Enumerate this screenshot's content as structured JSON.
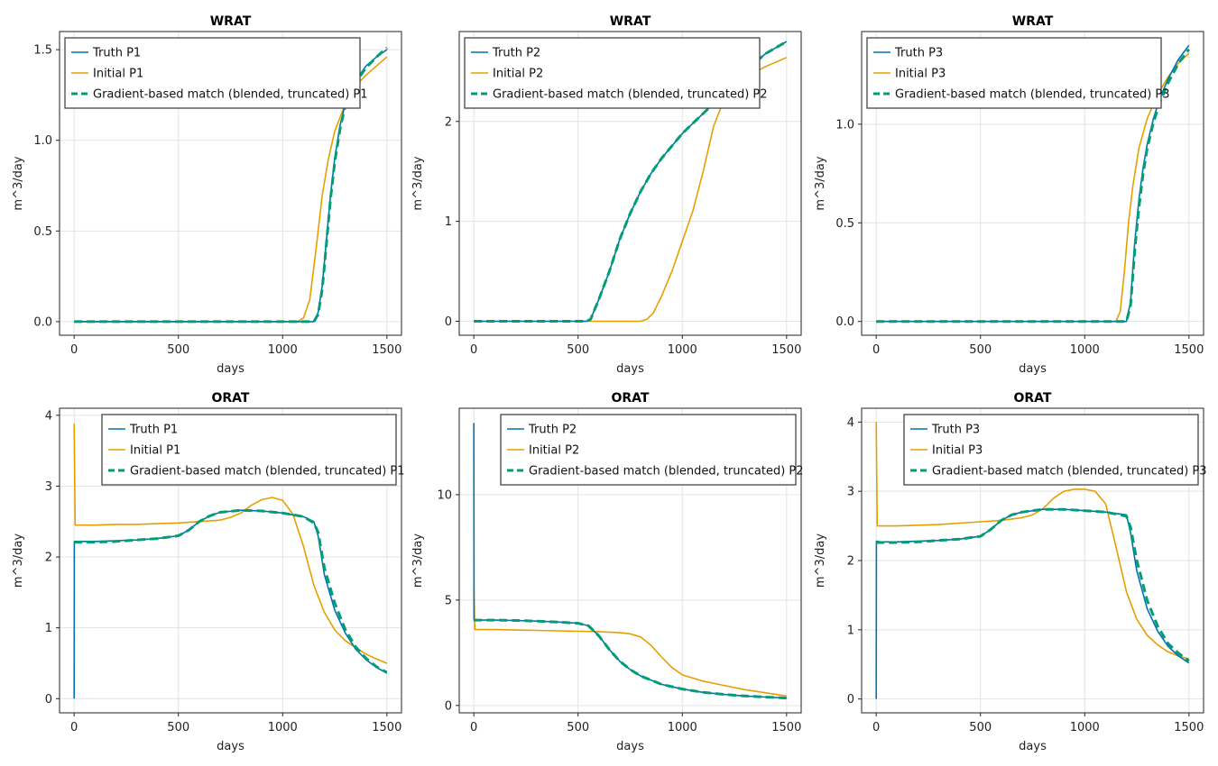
{
  "figure": {
    "colors": {
      "truth": "#0072b2",
      "initial": "#e69f00",
      "match": "#009e73"
    },
    "legend_labels": {
      "truth": "Truth",
      "initial": "Initial",
      "match": "Gradient-based match (blended, truncated)"
    }
  },
  "chart_data": [
    {
      "type": "line",
      "title": "WRAT",
      "xlabel": "days",
      "ylabel": "m^3/day",
      "xlim": [
        -70,
        1570
      ],
      "ylim": [
        -0.075,
        1.6
      ],
      "xticks": [
        0,
        500,
        1000,
        1500
      ],
      "yticks": [
        0.0,
        0.5,
        1.0,
        1.5
      ],
      "ytick_labels": [
        "0.0",
        "0.5",
        "1.0",
        "1.5"
      ],
      "grid": true,
      "legend_position": "top-left",
      "series": [
        {
          "name": "Truth P1",
          "role": "truth",
          "x": [
            0,
            200,
            400,
            600,
            800,
            1000,
            1150,
            1170,
            1190,
            1210,
            1230,
            1250,
            1275,
            1300,
            1350,
            1400,
            1450,
            1500
          ],
          "y": [
            0,
            0,
            0,
            0,
            0,
            0,
            0,
            0.05,
            0.2,
            0.45,
            0.7,
            0.9,
            1.08,
            1.2,
            1.33,
            1.41,
            1.46,
            1.5
          ]
        },
        {
          "name": "Initial P1",
          "role": "initial",
          "x": [
            0,
            200,
            400,
            600,
            800,
            1000,
            1070,
            1100,
            1130,
            1160,
            1190,
            1220,
            1250,
            1300,
            1350,
            1400,
            1450,
            1500
          ],
          "y": [
            0,
            0,
            0,
            0,
            0,
            0,
            0,
            0.02,
            0.12,
            0.4,
            0.7,
            0.9,
            1.05,
            1.2,
            1.3,
            1.36,
            1.41,
            1.46
          ]
        },
        {
          "name": "Gradient-based match (blended, truncated) P1",
          "role": "match",
          "x": [
            0,
            200,
            400,
            600,
            800,
            1000,
            1150,
            1170,
            1190,
            1210,
            1230,
            1250,
            1275,
            1300,
            1350,
            1400,
            1450,
            1500
          ],
          "y": [
            0,
            0,
            0,
            0,
            0,
            0,
            0,
            0.04,
            0.18,
            0.43,
            0.68,
            0.88,
            1.06,
            1.19,
            1.32,
            1.4,
            1.46,
            1.51
          ]
        }
      ]
    },
    {
      "type": "line",
      "title": "WRAT",
      "xlabel": "days",
      "ylabel": "m^3/day",
      "xlim": [
        -70,
        1570
      ],
      "ylim": [
        -0.14,
        2.9
      ],
      "xticks": [
        0,
        500,
        1000,
        1500
      ],
      "yticks": [
        0,
        1,
        2
      ],
      "ytick_labels": [
        "0",
        "1",
        "2"
      ],
      "grid": true,
      "legend_position": "top-left",
      "series": [
        {
          "name": "Truth P2",
          "role": "truth",
          "x": [
            0,
            200,
            400,
            540,
            560,
            600,
            650,
            700,
            750,
            800,
            850,
            900,
            1000,
            1100,
            1200,
            1300,
            1400,
            1500
          ],
          "y": [
            0,
            0,
            0,
            0,
            0.02,
            0.22,
            0.5,
            0.82,
            1.08,
            1.3,
            1.48,
            1.63,
            1.88,
            2.08,
            2.28,
            2.5,
            2.68,
            2.8
          ]
        },
        {
          "name": "Initial P2",
          "role": "initial",
          "x": [
            0,
            200,
            400,
            600,
            800,
            830,
            860,
            900,
            950,
            1000,
            1050,
            1100,
            1150,
            1200,
            1250,
            1300,
            1400,
            1500
          ],
          "y": [
            0,
            0,
            0,
            0,
            0,
            0.02,
            0.08,
            0.25,
            0.5,
            0.8,
            1.1,
            1.5,
            1.95,
            2.22,
            2.35,
            2.44,
            2.55,
            2.64
          ]
        },
        {
          "name": "Gradient-based match (blended, truncated) P2",
          "role": "match",
          "x": [
            0,
            200,
            400,
            540,
            560,
            600,
            650,
            700,
            750,
            800,
            850,
            900,
            1000,
            1100,
            1200,
            1300,
            1400,
            1500
          ],
          "y": [
            0,
            0,
            0,
            0,
            0.02,
            0.22,
            0.5,
            0.82,
            1.08,
            1.3,
            1.48,
            1.63,
            1.88,
            2.08,
            2.28,
            2.5,
            2.68,
            2.8
          ]
        }
      ]
    },
    {
      "type": "line",
      "title": "WRAT",
      "xlabel": "days",
      "ylabel": "m^3/day",
      "xlim": [
        -70,
        1570
      ],
      "ylim": [
        -0.07,
        1.47
      ],
      "xticks": [
        0,
        500,
        1000,
        1500
      ],
      "yticks": [
        0.0,
        0.5,
        1.0
      ],
      "ytick_labels": [
        "0.0",
        "0.5",
        "1.0"
      ],
      "grid": true,
      "legend_position": "top-left",
      "series": [
        {
          "name": "Truth P3",
          "role": "truth",
          "x": [
            0,
            200,
            400,
            600,
            800,
            1000,
            1200,
            1220,
            1240,
            1260,
            1280,
            1300,
            1330,
            1360,
            1400,
            1450,
            1500
          ],
          "y": [
            0,
            0,
            0,
            0,
            0,
            0,
            0,
            0.1,
            0.4,
            0.62,
            0.78,
            0.9,
            1.03,
            1.13,
            1.23,
            1.33,
            1.4
          ]
        },
        {
          "name": "Initial P3",
          "role": "initial",
          "x": [
            0,
            200,
            400,
            600,
            800,
            1000,
            1150,
            1170,
            1190,
            1210,
            1230,
            1260,
            1300,
            1350,
            1400,
            1450,
            1500
          ],
          "y": [
            0,
            0,
            0,
            0,
            0,
            0,
            0,
            0.05,
            0.25,
            0.5,
            0.68,
            0.88,
            1.03,
            1.15,
            1.24,
            1.31,
            1.36
          ]
        },
        {
          "name": "Gradient-based match (blended, truncated) P3",
          "role": "match",
          "x": [
            0,
            200,
            400,
            600,
            800,
            1000,
            1200,
            1220,
            1240,
            1260,
            1280,
            1300,
            1330,
            1360,
            1400,
            1450,
            1500
          ],
          "y": [
            0,
            0,
            0,
            0,
            0,
            0,
            0,
            0.08,
            0.36,
            0.58,
            0.75,
            0.88,
            1.01,
            1.11,
            1.21,
            1.31,
            1.38
          ]
        }
      ]
    },
    {
      "type": "line",
      "title": "ORAT",
      "xlabel": "days",
      "ylabel": "m^3/day",
      "xlim": [
        -70,
        1570
      ],
      "ylim": [
        -0.2,
        4.1
      ],
      "xticks": [
        0,
        500,
        1000,
        1500
      ],
      "yticks": [
        0,
        1,
        2,
        3,
        4
      ],
      "ytick_labels": [
        "0",
        "1",
        "2",
        "3",
        "4"
      ],
      "grid": true,
      "legend_position": "top-right",
      "series": [
        {
          "name": "Truth P1",
          "role": "truth",
          "x": [
            0,
            1,
            20,
            100,
            200,
            300,
            400,
            500,
            550,
            600,
            650,
            700,
            800,
            900,
            1000,
            1100,
            1150,
            1170,
            1200,
            1250,
            1300,
            1350,
            1400,
            1450,
            1500
          ],
          "y": [
            0,
            2.22,
            2.22,
            2.22,
            2.23,
            2.24,
            2.26,
            2.3,
            2.38,
            2.5,
            2.58,
            2.63,
            2.66,
            2.65,
            2.62,
            2.57,
            2.5,
            2.3,
            1.75,
            1.25,
            0.93,
            0.7,
            0.55,
            0.44,
            0.36
          ]
        },
        {
          "name": "Initial P1",
          "role": "initial",
          "x": [
            0,
            5,
            20,
            100,
            200,
            300,
            400,
            500,
            600,
            700,
            750,
            800,
            850,
            900,
            950,
            1000,
            1050,
            1100,
            1150,
            1200,
            1250,
            1300,
            1350,
            1400,
            1450,
            1500
          ],
          "y": [
            3.88,
            2.45,
            2.45,
            2.45,
            2.46,
            2.46,
            2.47,
            2.48,
            2.5,
            2.52,
            2.56,
            2.62,
            2.73,
            2.81,
            2.84,
            2.8,
            2.6,
            2.15,
            1.6,
            1.22,
            0.97,
            0.82,
            0.72,
            0.63,
            0.56,
            0.5
          ]
        },
        {
          "name": "Gradient-based match (blended, truncated) P1",
          "role": "match",
          "x": [
            0,
            100,
            200,
            300,
            400,
            500,
            550,
            600,
            650,
            700,
            800,
            900,
            1000,
            1100,
            1150,
            1170,
            1200,
            1250,
            1300,
            1350,
            1400,
            1450,
            1500
          ],
          "y": [
            2.21,
            2.21,
            2.22,
            2.24,
            2.26,
            2.3,
            2.38,
            2.5,
            2.58,
            2.63,
            2.66,
            2.65,
            2.62,
            2.57,
            2.48,
            2.35,
            1.85,
            1.35,
            0.98,
            0.73,
            0.57,
            0.45,
            0.37
          ]
        }
      ]
    },
    {
      "type": "line",
      "title": "ORAT",
      "xlabel": "days",
      "ylabel": "m^3/day",
      "xlim": [
        -70,
        1570
      ],
      "ylim": [
        -0.35,
        14.1
      ],
      "xticks": [
        0,
        500,
        1000,
        1500
      ],
      "yticks": [
        0,
        5,
        10
      ],
      "ytick_labels": [
        "0",
        "5",
        "10"
      ],
      "grid": true,
      "legend_position": "top-right",
      "series": [
        {
          "name": "Truth P2",
          "role": "truth",
          "x": [
            0,
            1,
            3,
            5,
            20,
            100,
            200,
            300,
            400,
            500,
            550,
            600,
            650,
            700,
            750,
            800,
            900,
            1000,
            1100,
            1200,
            1300,
            1400,
            1500
          ],
          "y": [
            13.4,
            4.05,
            4.05,
            4.05,
            4.05,
            4.05,
            4.03,
            4.0,
            3.96,
            3.9,
            3.78,
            3.3,
            2.65,
            2.1,
            1.7,
            1.4,
            1.0,
            0.78,
            0.62,
            0.52,
            0.45,
            0.4,
            0.35
          ]
        },
        {
          "name": "Initial P2",
          "role": "initial",
          "x": [
            0,
            5,
            20,
            100,
            200,
            300,
            400,
            500,
            600,
            700,
            750,
            800,
            850,
            900,
            950,
            1000,
            1100,
            1200,
            1300,
            1400,
            1500
          ],
          "y": [
            5.6,
            3.6,
            3.6,
            3.6,
            3.58,
            3.56,
            3.54,
            3.52,
            3.5,
            3.45,
            3.4,
            3.25,
            2.85,
            2.3,
            1.8,
            1.45,
            1.15,
            0.95,
            0.75,
            0.6,
            0.45
          ]
        },
        {
          "name": "Gradient-based match (blended, truncated) P2",
          "role": "match",
          "x": [
            0,
            100,
            200,
            300,
            400,
            500,
            550,
            600,
            650,
            700,
            750,
            800,
            900,
            1000,
            1100,
            1200,
            1300,
            1400,
            1500
          ],
          "y": [
            4.05,
            4.05,
            4.03,
            4.0,
            3.96,
            3.9,
            3.78,
            3.3,
            2.65,
            2.1,
            1.7,
            1.4,
            1.0,
            0.78,
            0.62,
            0.52,
            0.45,
            0.4,
            0.35
          ]
        }
      ]
    },
    {
      "type": "line",
      "title": "ORAT",
      "xlabel": "days",
      "ylabel": "m^3/day",
      "xlim": [
        -70,
        1570
      ],
      "ylim": [
        -0.2,
        4.2
      ],
      "xticks": [
        0,
        500,
        1000,
        1500
      ],
      "yticks": [
        0,
        1,
        2,
        3,
        4
      ],
      "ytick_labels": [
        "0",
        "1",
        "2",
        "3",
        "4"
      ],
      "grid": true,
      "legend_position": "top-right",
      "series": [
        {
          "name": "Truth P3",
          "role": "truth",
          "x": [
            0,
            1,
            20,
            100,
            200,
            300,
            400,
            500,
            550,
            600,
            650,
            700,
            800,
            900,
            1000,
            1100,
            1200,
            1220,
            1250,
            1300,
            1350,
            1400,
            1450,
            1500
          ],
          "y": [
            0,
            2.28,
            2.27,
            2.27,
            2.28,
            2.29,
            2.31,
            2.35,
            2.45,
            2.58,
            2.66,
            2.7,
            2.74,
            2.74,
            2.72,
            2.7,
            2.66,
            2.4,
            1.85,
            1.3,
            0.98,
            0.76,
            0.62,
            0.52
          ]
        },
        {
          "name": "Initial P3",
          "role": "initial",
          "x": [
            0,
            5,
            20,
            100,
            200,
            300,
            400,
            500,
            600,
            700,
            750,
            800,
            850,
            900,
            950,
            1000,
            1050,
            1100,
            1150,
            1200,
            1250,
            1300,
            1350,
            1400,
            1450,
            1500
          ],
          "y": [
            4.0,
            2.5,
            2.5,
            2.5,
            2.51,
            2.52,
            2.54,
            2.56,
            2.58,
            2.62,
            2.66,
            2.75,
            2.9,
            3.0,
            3.03,
            3.03,
            3.0,
            2.82,
            2.2,
            1.55,
            1.15,
            0.92,
            0.78,
            0.68,
            0.62,
            0.58
          ]
        },
        {
          "name": "Gradient-based match (blended, truncated) P3",
          "role": "match",
          "x": [
            0,
            100,
            200,
            300,
            400,
            500,
            550,
            600,
            650,
            700,
            800,
            900,
            1000,
            1100,
            1200,
            1220,
            1250,
            1300,
            1350,
            1400,
            1450,
            1500
          ],
          "y": [
            2.26,
            2.26,
            2.27,
            2.29,
            2.31,
            2.35,
            2.45,
            2.58,
            2.66,
            2.7,
            2.74,
            2.74,
            2.72,
            2.7,
            2.64,
            2.48,
            2.0,
            1.42,
            1.05,
            0.8,
            0.66,
            0.55
          ]
        }
      ]
    }
  ]
}
